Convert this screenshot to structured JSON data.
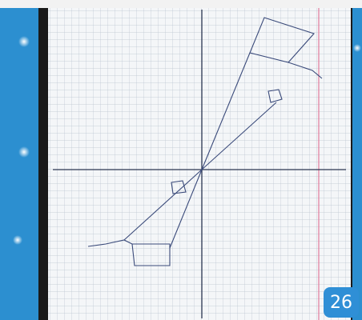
{
  "badge": {
    "number": "26"
  }
}
